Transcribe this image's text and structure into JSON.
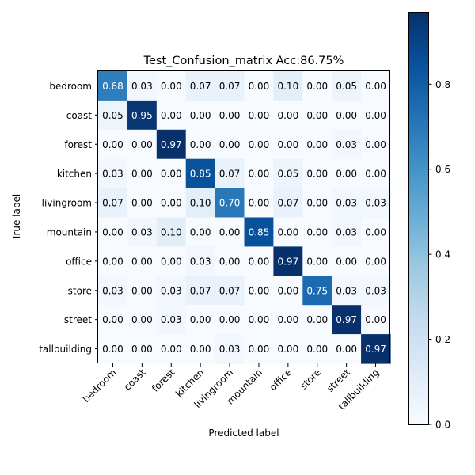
{
  "chart_data": {
    "type": "heatmap",
    "title": "Test_Confusion_matrix Acc:86.75%",
    "xlabel": "Predicted label",
    "ylabel": "True label",
    "x_categories": [
      "bedroom",
      "coast",
      "forest",
      "kitchen",
      "livingroom",
      "mountain",
      "office",
      "store",
      "street",
      "tallbuilding"
    ],
    "y_categories": [
      "bedroom",
      "coast",
      "forest",
      "kitchen",
      "livingroom",
      "mountain",
      "office",
      "store",
      "street",
      "tallbuilding"
    ],
    "values": [
      [
        0.68,
        0.03,
        0.0,
        0.07,
        0.07,
        0.0,
        0.1,
        0.0,
        0.05,
        0.0
      ],
      [
        0.05,
        0.95,
        0.0,
        0.0,
        0.0,
        0.0,
        0.0,
        0.0,
        0.0,
        0.0
      ],
      [
        0.0,
        0.0,
        0.97,
        0.0,
        0.0,
        0.0,
        0.0,
        0.0,
        0.03,
        0.0
      ],
      [
        0.03,
        0.0,
        0.0,
        0.85,
        0.07,
        0.0,
        0.05,
        0.0,
        0.0,
        0.0
      ],
      [
        0.07,
        0.0,
        0.0,
        0.1,
        0.7,
        0.0,
        0.07,
        0.0,
        0.03,
        0.03
      ],
      [
        0.0,
        0.03,
        0.1,
        0.0,
        0.0,
        0.85,
        0.0,
        0.0,
        0.03,
        0.0
      ],
      [
        0.0,
        0.0,
        0.0,
        0.03,
        0.0,
        0.0,
        0.97,
        0.0,
        0.0,
        0.0
      ],
      [
        0.03,
        0.0,
        0.03,
        0.07,
        0.07,
        0.0,
        0.0,
        0.75,
        0.03,
        0.03
      ],
      [
        0.0,
        0.0,
        0.03,
        0.0,
        0.0,
        0.0,
        0.0,
        0.0,
        0.97,
        0.0
      ],
      [
        0.0,
        0.0,
        0.0,
        0.0,
        0.03,
        0.0,
        0.0,
        0.0,
        0.0,
        0.97
      ]
    ],
    "colormap": "Blues",
    "color_range": [
      0.0,
      0.97
    ],
    "colorbar": {
      "ticks": [
        0.0,
        0.2,
        0.4,
        0.6,
        0.8
      ],
      "tick_labels": [
        "0.0",
        "0.2",
        "0.4",
        "0.6",
        "0.8"
      ],
      "range": [
        0.0,
        0.97
      ]
    },
    "text_threshold": 0.485,
    "text_colors": {
      "dark": "#000000",
      "light": "#ffffff"
    },
    "grid": false,
    "x_tick_rotation_deg": 45,
    "colorbar_placement": "right"
  }
}
